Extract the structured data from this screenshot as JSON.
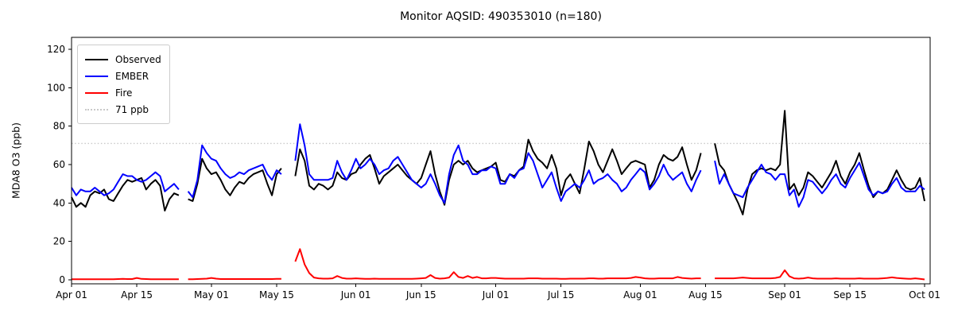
{
  "chart_data": {
    "type": "line",
    "title": "Monitor AQSID: 490353010 (n=180)",
    "xlabel": "",
    "ylabel": "MDA8 O3 (ppb)",
    "x_unit": "day index from Apr 01",
    "x_range_labels": [
      "Apr 01",
      "Oct 01"
    ],
    "ylim": [
      0,
      126
    ],
    "grid": false,
    "legend_position": "upper left",
    "background": "#ffffff",
    "xticks": [
      {
        "label": "Apr 01",
        "day": 0
      },
      {
        "label": "Apr 15",
        "day": 14
      },
      {
        "label": "May 01",
        "day": 30
      },
      {
        "label": "May 15",
        "day": 44
      },
      {
        "label": "Jun 01",
        "day": 61
      },
      {
        "label": "Jun 15",
        "day": 75
      },
      {
        "label": "Jul 01",
        "day": 91
      },
      {
        "label": "Jul 15",
        "day": 105
      },
      {
        "label": "Aug 01",
        "day": 122
      },
      {
        "label": "Aug 15",
        "day": 136
      },
      {
        "label": "Sep 01",
        "day": 153
      },
      {
        "label": "Sep 15",
        "day": 167
      },
      {
        "label": "Oct 01",
        "day": 183
      }
    ],
    "yticks": [
      0,
      20,
      40,
      60,
      80,
      100,
      120
    ],
    "threshold": {
      "label": "71 ppb",
      "value": 71,
      "color": "#c9c9c9",
      "style": "dotted"
    },
    "legend": [
      {
        "label": "Observed",
        "color": "#000000",
        "style": "solid"
      },
      {
        "label": "EMBER",
        "color": "#0000ff",
        "style": "solid"
      },
      {
        "label": "Fire",
        "color": "#ff0000",
        "style": "solid"
      },
      {
        "label": "71 ppb",
        "color": "#c9c9c9",
        "style": "dotted"
      }
    ],
    "series": [
      {
        "name": "Observed",
        "color": "#000000",
        "values": [
          43,
          38,
          40,
          38,
          44,
          46,
          45,
          47,
          42,
          41,
          45,
          49,
          52,
          51,
          52,
          53,
          47,
          50,
          52,
          49,
          36,
          42,
          45,
          44,
          null,
          42,
          41,
          50,
          63,
          58,
          55,
          56,
          52,
          47,
          44,
          48,
          51,
          50,
          53,
          55,
          56,
          57,
          50,
          44,
          55,
          58,
          null,
          null,
          54,
          68,
          62,
          49,
          47,
          50,
          49,
          47,
          49,
          56,
          53,
          52,
          55,
          56,
          60,
          63,
          65,
          58,
          50,
          54,
          56,
          58,
          60,
          57,
          54,
          52,
          50,
          53,
          60,
          67,
          55,
          46,
          39,
          52,
          60,
          62,
          60,
          62,
          58,
          56,
          57,
          58,
          59,
          61,
          52,
          51,
          55,
          54,
          57,
          59,
          73,
          67,
          63,
          61,
          58,
          65,
          58,
          44,
          52,
          55,
          50,
          45,
          58,
          72,
          67,
          60,
          56,
          62,
          68,
          62,
          55,
          58,
          61,
          62,
          61,
          60,
          48,
          52,
          60,
          65,
          63,
          62,
          64,
          69,
          60,
          52,
          57,
          66,
          null,
          null,
          71,
          60,
          57,
          50,
          45,
          40,
          34,
          47,
          55,
          57,
          58,
          57,
          58,
          57,
          60,
          88,
          47,
          50,
          44,
          48,
          56,
          54,
          51,
          48,
          52,
          56,
          62,
          54,
          50,
          56,
          60,
          66,
          57,
          49,
          43,
          46,
          45,
          47,
          52,
          57,
          52,
          48,
          47,
          48,
          53,
          41
        ]
      },
      {
        "name": "EMBER",
        "color": "#0000ff",
        "values": [
          48,
          44,
          47,
          46,
          46,
          48,
          46,
          44,
          45,
          47,
          51,
          55,
          54,
          54,
          52,
          51,
          52,
          54,
          56,
          54,
          46,
          48,
          50,
          47,
          null,
          46,
          43,
          52,
          70,
          66,
          63,
          62,
          58,
          55,
          53,
          54,
          56,
          55,
          57,
          58,
          59,
          60,
          55,
          52,
          57,
          55,
          null,
          null,
          62,
          81,
          70,
          55,
          52,
          52,
          52,
          52,
          53,
          62,
          56,
          52,
          57,
          63,
          58,
          60,
          63,
          60,
          55,
          57,
          58,
          62,
          64,
          60,
          56,
          52,
          50,
          48,
          50,
          55,
          50,
          44,
          40,
          55,
          65,
          70,
          62,
          60,
          55,
          55,
          57,
          57,
          59,
          58,
          50,
          50,
          55,
          53,
          57,
          58,
          66,
          62,
          55,
          48,
          52,
          56,
          48,
          41,
          46,
          48,
          50,
          48,
          52,
          57,
          50,
          52,
          53,
          55,
          52,
          50,
          46,
          48,
          52,
          55,
          58,
          56,
          47,
          50,
          54,
          60,
          55,
          52,
          54,
          56,
          50,
          46,
          52,
          57,
          null,
          null,
          62,
          50,
          55,
          50,
          45,
          44,
          43,
          48,
          52,
          56,
          60,
          56,
          55,
          52,
          55,
          55,
          44,
          47,
          38,
          43,
          52,
          51,
          48,
          45,
          48,
          52,
          55,
          50,
          48,
          53,
          57,
          61,
          54,
          47,
          44,
          46,
          45,
          46,
          50,
          53,
          48,
          46,
          46,
          46,
          49,
          47
        ]
      },
      {
        "name": "Fire",
        "color": "#ff0000",
        "values": [
          0.3,
          0.3,
          0.3,
          0.3,
          0.3,
          0.3,
          0.3,
          0.3,
          0.3,
          0.3,
          0.4,
          0.5,
          0.4,
          0.4,
          1.0,
          0.5,
          0.4,
          0.3,
          0.3,
          0.3,
          0.3,
          0.3,
          0.3,
          0.3,
          null,
          0.3,
          0.3,
          0.4,
          0.5,
          0.6,
          1.0,
          0.6,
          0.4,
          0.4,
          0.4,
          0.4,
          0.4,
          0.4,
          0.4,
          0.4,
          0.4,
          0.4,
          0.4,
          0.4,
          0.5,
          0.5,
          null,
          null,
          9.5,
          16,
          8,
          3.5,
          1.2,
          0.8,
          0.6,
          0.6,
          0.8,
          2.0,
          1.0,
          0.6,
          0.6,
          0.8,
          0.6,
          0.5,
          0.5,
          0.6,
          0.5,
          0.5,
          0.5,
          0.5,
          0.5,
          0.5,
          0.5,
          0.5,
          0.6,
          0.8,
          1.0,
          2.5,
          1.0,
          0.6,
          0.8,
          1.2,
          4.0,
          1.5,
          1.0,
          2.0,
          1.0,
          1.5,
          0.8,
          0.8,
          1.0,
          1.0,
          0.8,
          0.6,
          0.6,
          0.6,
          0.6,
          0.6,
          0.8,
          0.8,
          0.8,
          0.6,
          0.6,
          0.6,
          0.6,
          0.5,
          0.5,
          0.6,
          0.6,
          0.6,
          0.6,
          0.8,
          0.8,
          0.6,
          0.6,
          0.8,
          0.8,
          0.8,
          0.8,
          0.8,
          1.0,
          1.5,
          1.2,
          0.8,
          0.6,
          0.6,
          0.8,
          0.8,
          0.8,
          0.8,
          1.5,
          1.0,
          0.8,
          0.6,
          0.8,
          0.8,
          null,
          null,
          0.8,
          0.8,
          0.8,
          0.8,
          0.8,
          1.0,
          1.2,
          1.0,
          0.8,
          0.8,
          0.8,
          0.8,
          0.8,
          1.0,
          1.5,
          5.0,
          1.8,
          0.8,
          0.6,
          0.8,
          1.2,
          0.8,
          0.6,
          0.6,
          0.6,
          0.6,
          0.8,
          0.6,
          0.6,
          0.6,
          0.6,
          0.8,
          0.6,
          0.6,
          0.6,
          0.6,
          0.8,
          1.0,
          1.3,
          1.0,
          0.8,
          0.6,
          0.5,
          0.8,
          0.5,
          0.2
        ]
      }
    ]
  }
}
